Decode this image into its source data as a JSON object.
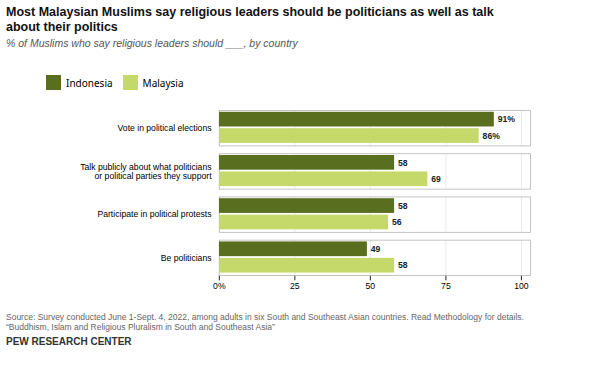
{
  "chart_data": {
    "type": "bar",
    "orientation": "horizontal",
    "title": "Most Malaysian Muslims say religious leaders should be politicians as well as talk\nabout their politics",
    "subtitle": "% of ​Muslims​ who say religious leaders should ___, by country",
    "source": "Source: Survey conducted June 1-Sept. 4, 2022, among adults in six South and Southeast Asian countries. Read Methodology for details.\n“Buddhism, Islam and Religious Pluralism in South and Southeast Asia”",
    "footer": "PEW RESEARCH CENTER",
    "categories": [
      "Vote in political elections",
      "Talk publicly about what politicians\nor political parties they support",
      "Participate in political protests",
      "Be politicians"
    ],
    "series": [
      {
        "name": "Indonesia",
        "color": "#5a6e1f",
        "values": [
          91,
          58,
          58,
          49
        ],
        "value_labels": [
          "91%",
          "58",
          "58",
          "49"
        ]
      },
      {
        "name": "Malaysia",
        "color": "#c5d96b",
        "values": [
          86,
          69,
          56,
          58
        ],
        "value_labels": [
          "86%",
          "69",
          "56",
          "58"
        ]
      }
    ],
    "xlim": [
      0,
      103
    ],
    "xticks": [
      {
        "value": 0,
        "label": "0%"
      },
      25,
      50,
      75,
      100
    ],
    "grid": true,
    "legend": "top",
    "data_labels": true
  }
}
